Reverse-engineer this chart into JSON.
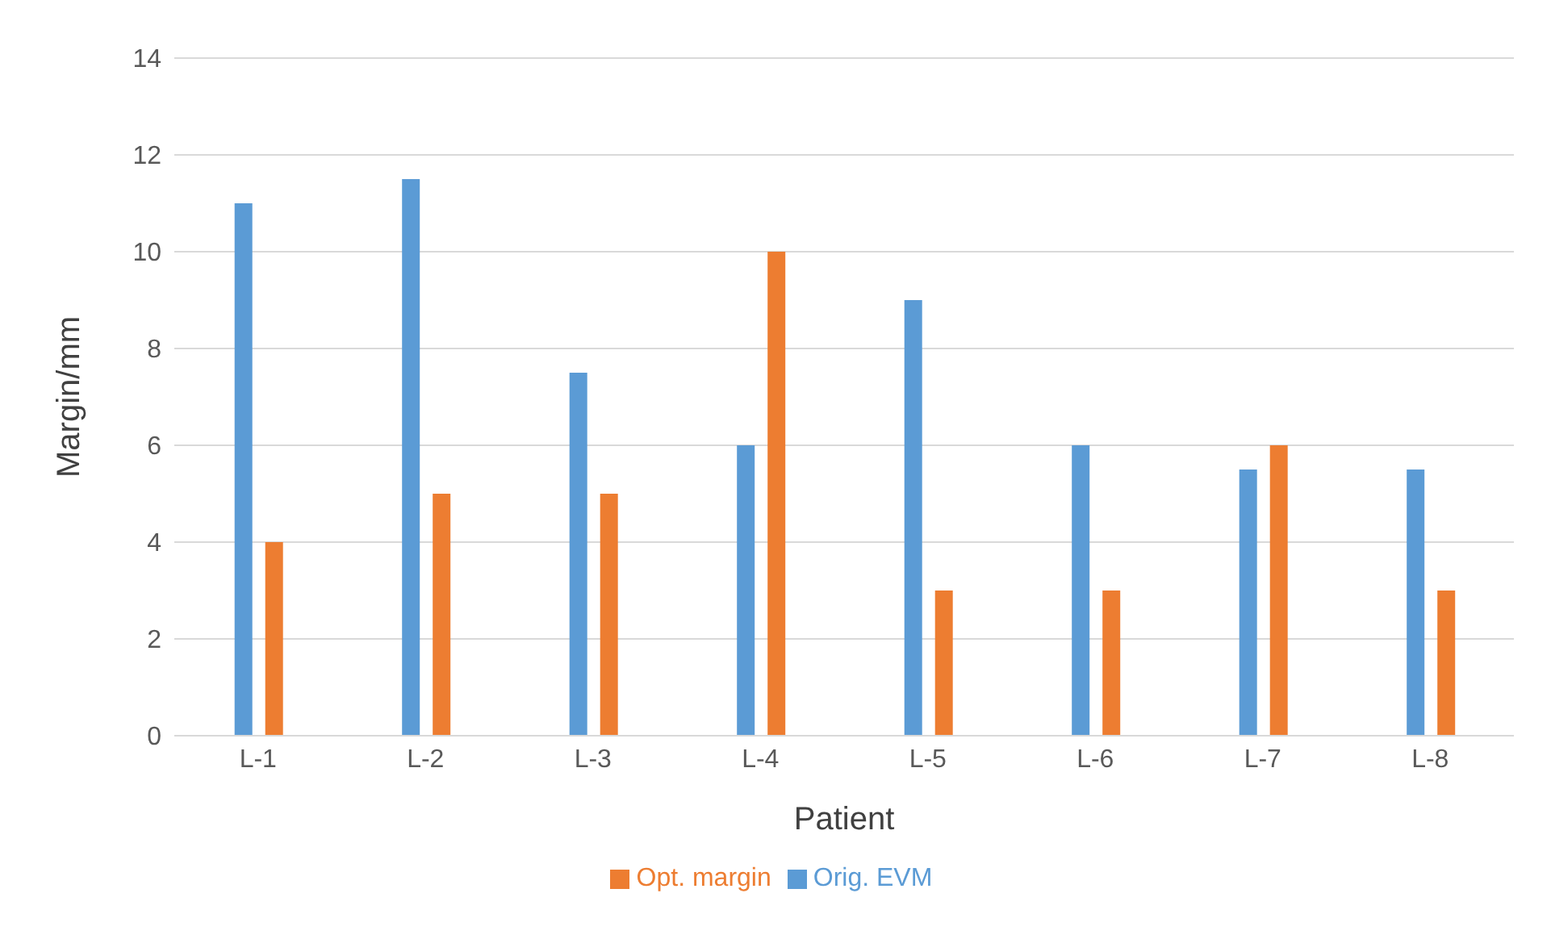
{
  "chart_data": {
    "type": "bar",
    "xlabel": "Patient",
    "ylabel": "Margin/mm",
    "categories": [
      "L-1",
      "L-2",
      "L-3",
      "L-4",
      "L-5",
      "L-6",
      "L-7",
      "L-8"
    ],
    "series": [
      {
        "name": "Orig. EVM",
        "color": "#5b9bd5",
        "values": [
          11,
          11.5,
          7.5,
          6,
          9,
          6,
          5.5,
          5.5
        ]
      },
      {
        "name": "Opt. margin",
        "color": "#ed7d31",
        "values": [
          4,
          5,
          5,
          10,
          3,
          3,
          6,
          3
        ]
      }
    ],
    "ylim": [
      0,
      14
    ],
    "yticks": [
      0,
      2,
      4,
      6,
      8,
      10,
      12,
      14
    ],
    "grid": "y",
    "legend": "bottom"
  }
}
